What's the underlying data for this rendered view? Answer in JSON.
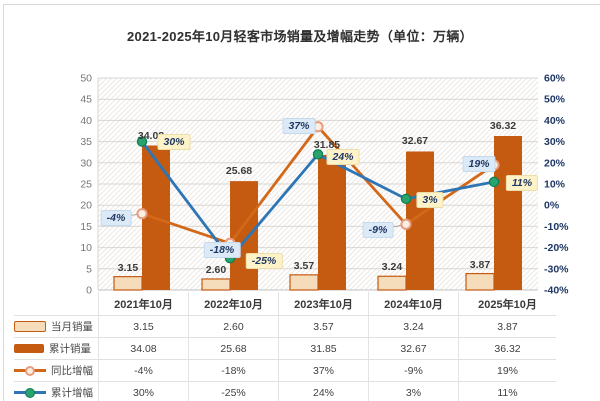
{
  "title": "2021-2025年10月轻客市场销量及增幅走势（单位：万辆）",
  "chart_data": {
    "type": "combo-bar-line",
    "categories": [
      "2021年10月",
      "2022年10月",
      "2023年10月",
      "2024年10月",
      "2025年10月"
    ],
    "series": [
      {
        "name": "当月销量",
        "type": "bar",
        "axis": "left",
        "values": [
          3.15,
          2.6,
          3.57,
          3.24,
          3.87
        ],
        "labels": [
          "3.15",
          "2.60",
          "3.57",
          "3.24",
          "3.87"
        ]
      },
      {
        "name": "累计销量",
        "type": "bar",
        "axis": "left",
        "values": [
          34.08,
          25.68,
          31.85,
          32.67,
          36.32
        ],
        "labels": [
          "34.08",
          "25.68",
          "31.85",
          "32.67",
          "36.32"
        ]
      },
      {
        "name": "同比增幅",
        "type": "line",
        "axis": "right",
        "values": [
          -4,
          -18,
          37,
          -9,
          19
        ],
        "labels": [
          "-4%",
          "-18%",
          "37%",
          "-9%",
          "19%"
        ]
      },
      {
        "name": "累计增幅",
        "type": "line",
        "axis": "right",
        "values": [
          30,
          -25,
          24,
          3,
          11
        ],
        "labels": [
          "30%",
          "-25%",
          "24%",
          "3%",
          "11%"
        ]
      }
    ],
    "left_axis": {
      "title": "单位：万辆",
      "min": 0,
      "max": 50,
      "step": 5,
      "tick_labels": [
        "0",
        "5",
        "10",
        "15",
        "20",
        "25",
        "30",
        "35",
        "40",
        "45",
        "50"
      ]
    },
    "right_axis": {
      "min": -40,
      "max": 60,
      "step": 10,
      "tick_labels": [
        "-40%",
        "-30%",
        "-20%",
        "-10%",
        "0%",
        "10%",
        "20%",
        "30%",
        "40%",
        "50%",
        "60%"
      ]
    },
    "grid": true,
    "plot_hatched": true,
    "legend_position": "table-bottom"
  },
  "colors": {
    "bar_monthly_fill": "#F5DCBB",
    "bar_monthly_border": "#C55A11",
    "bar_cumulative": "#C55A11",
    "line_yoy": "#D26818",
    "line_yoy_marker_fill": "#FBEFE4",
    "line_yoy_marker_ring": "#E99C7E",
    "line_cum": "#2E75B6",
    "line_cum_marker_fill": "#28A36D",
    "line_cum_marker_ring": "#0E7C52",
    "label_yoy_bg": "#DCE9F6",
    "label_cum_bg": "#FEF2C9",
    "label_text": "#1F3864",
    "axis_left_text": "#767676",
    "axis_right_text": "#1F3864",
    "grid": "#d9d6d1"
  },
  "table": {
    "header": [
      "2021年10月",
      "2022年10月",
      "2023年10月",
      "2024年10月",
      "2025年10月"
    ],
    "rows": [
      {
        "label": "当月销量",
        "key": "bar-monthly",
        "values": [
          "3.15",
          "2.60",
          "3.57",
          "3.24",
          "3.87"
        ]
      },
      {
        "label": "累计销量",
        "key": "bar-cumulative",
        "values": [
          "34.08",
          "25.68",
          "31.85",
          "32.67",
          "36.32"
        ]
      },
      {
        "label": "同比增幅",
        "key": "line-yoy",
        "values": [
          "-4%",
          "-18%",
          "37%",
          "-9%",
          "19%"
        ]
      },
      {
        "label": "累计增幅",
        "key": "line-cum",
        "values": [
          "30%",
          "-25%",
          "24%",
          "3%",
          "11%"
        ]
      }
    ]
  }
}
